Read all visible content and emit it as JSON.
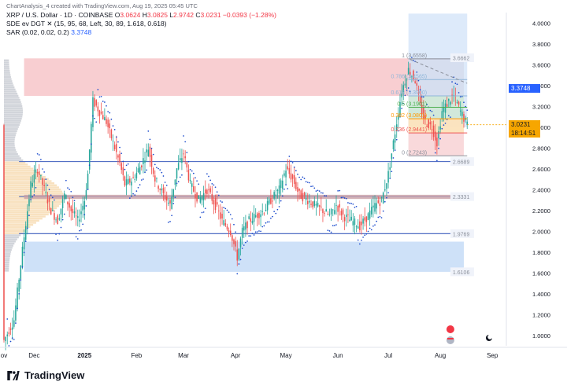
{
  "header": {
    "line1_title": "XRP / U.S. Dollar · 1D · COINBASE",
    "line1_o_label": "O",
    "line1_o": "3.0624",
    "line1_h_label": "H",
    "line1_h": "3.0825",
    "line1_l_label": "L",
    "line1_l": "2.9742",
    "line1_c_label": "C",
    "line1_c": "3.0231",
    "line1_chg": "−0.0393 (−1.28%)",
    "line2": "SDE ev DGT ✕ (15, 95, 68, Left, 30, 89, 1.618, 0.618)",
    "line3_label": "SAR (0.02, 0.02, 0.2)",
    "line3_value": "3.3748"
  },
  "watermark": "ChartAnalysis_4 created with TradingView.com, Aug 19, 2025 05:45 UTC",
  "brand": "TradingView",
  "colors": {
    "up": "#26a69a",
    "down": "#ef5350",
    "sar": "#1848cc",
    "fib_red": "#f7c6c9",
    "fib_blue": "#c6dcf7",
    "level_line": "#3b5bbd"
  },
  "chart_data": {
    "type": "candlestick",
    "symbol": "XRP / U.S. Dollar",
    "interval": "1D",
    "exchange": "COINBASE",
    "ylim": [
      0.9,
      4.1
    ],
    "y_ticks": [
      "1.0000",
      "1.2000",
      "1.4000",
      "1.6000",
      "1.8000",
      "2.0000",
      "2.2000",
      "2.4000",
      "2.6000",
      "2.8000",
      "3.0000",
      "3.2000",
      "3.4000",
      "3.6000",
      "3.8000",
      "4.0000"
    ],
    "x_ticks": [
      "ov",
      "Dec",
      "2025",
      "Feb",
      "Mar",
      "Apr",
      "May",
      "Jun",
      "Jul",
      "Aug",
      "Sep"
    ],
    "x_tick_index": [
      -12,
      6,
      36,
      67,
      95,
      126,
      156,
      187,
      217,
      248,
      279
    ],
    "x_range": [
      -12,
      285
    ],
    "last_price": "3.0231",
    "countdown": "18:14:51",
    "sar_value": "3.3748",
    "fib_levels": [
      {
        "ratio": "1",
        "price": "3.6558",
        "value": 3.6558
      },
      {
        "ratio": "0.786",
        "price": "3.4565",
        "value": 3.4565
      },
      {
        "ratio": "0.618",
        "price": "3.3000",
        "value": 3.3
      },
      {
        "ratio": "0.5",
        "price": "3.1901",
        "value": 3.1901
      },
      {
        "ratio": "0.382",
        "price": "3.0801",
        "value": 3.0801
      },
      {
        "ratio": "0.236",
        "price": "2.9441",
        "value": 2.9441
      },
      {
        "ratio": "0",
        "price": "2.7243",
        "value": 2.7243
      }
    ],
    "level_labels": [
      {
        "label": "3.6662",
        "value": 3.6662
      },
      {
        "label": "2.6689",
        "value": 2.6689
      },
      {
        "label": "2.3331",
        "value": 2.3331
      },
      {
        "label": "1.9769",
        "value": 1.9769
      },
      {
        "label": "1.6106",
        "value": 1.6106
      }
    ],
    "zones": [
      {
        "name": "resistance",
        "from": 3.3,
        "to": 3.66,
        "color": "red"
      },
      {
        "name": "support",
        "from": 1.61,
        "to": 1.9,
        "color": "blue"
      }
    ],
    "anchors": [
      [
        -12,
        0.95
      ],
      [
        -6,
        1.15
      ],
      [
        0,
        1.95
      ],
      [
        4,
        2.45
      ],
      [
        8,
        2.6
      ],
      [
        12,
        2.4
      ],
      [
        16,
        2.2
      ],
      [
        20,
        2.1
      ],
      [
        24,
        2.35
      ],
      [
        28,
        2.2
      ],
      [
        32,
        2.1
      ],
      [
        36,
        2.3
      ],
      [
        38,
        2.55
      ],
      [
        41,
        3.25
      ],
      [
        45,
        3.15
      ],
      [
        49,
        3.05
      ],
      [
        53,
        2.85
      ],
      [
        57,
        2.65
      ],
      [
        60,
        2.45
      ],
      [
        65,
        2.5
      ],
      [
        70,
        2.65
      ],
      [
        74,
        2.8
      ],
      [
        78,
        2.5
      ],
      [
        83,
        2.35
      ],
      [
        87,
        2.25
      ],
      [
        91,
        2.6
      ],
      [
        95,
        2.75
      ],
      [
        99,
        2.45
      ],
      [
        104,
        2.3
      ],
      [
        109,
        2.4
      ],
      [
        114,
        2.25
      ],
      [
        118,
        2.1
      ],
      [
        123,
        2.0
      ],
      [
        127,
        1.75
      ],
      [
        130,
        2.0
      ],
      [
        134,
        2.1
      ],
      [
        138,
        2.15
      ],
      [
        143,
        2.2
      ],
      [
        147,
        2.3
      ],
      [
        152,
        2.4
      ],
      [
        156,
        2.6
      ],
      [
        160,
        2.5
      ],
      [
        164,
        2.35
      ],
      [
        169,
        2.3
      ],
      [
        173,
        2.25
      ],
      [
        178,
        2.2
      ],
      [
        182,
        2.15
      ],
      [
        186,
        2.25
      ],
      [
        190,
        2.15
      ],
      [
        195,
        2.1
      ],
      [
        200,
        2.05
      ],
      [
        205,
        2.15
      ],
      [
        209,
        2.25
      ],
      [
        213,
        2.3
      ],
      [
        217,
        2.55
      ],
      [
        221,
        2.95
      ],
      [
        225,
        3.35
      ],
      [
        229,
        3.55
      ],
      [
        233,
        3.45
      ],
      [
        236,
        3.2
      ],
      [
        239,
        3.05
      ],
      [
        243,
        3.0
      ],
      [
        246,
        2.85
      ],
      [
        249,
        3.15
      ],
      [
        253,
        3.25
      ],
      [
        256,
        3.3
      ],
      [
        260,
        3.15
      ],
      [
        264,
        3.02
      ]
    ]
  }
}
